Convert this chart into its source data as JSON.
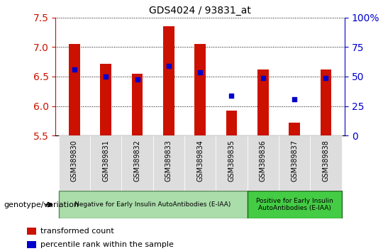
{
  "title": "GDS4024 / 93831_at",
  "samples": [
    "GSM389830",
    "GSM389831",
    "GSM389832",
    "GSM389833",
    "GSM389834",
    "GSM389835",
    "GSM389836",
    "GSM389837",
    "GSM389838"
  ],
  "red_values": [
    7.05,
    6.72,
    6.55,
    7.35,
    7.05,
    5.92,
    6.62,
    5.72,
    6.62
  ],
  "blue_values_left_scale": [
    6.62,
    6.5,
    6.45,
    6.68,
    6.57,
    6.18,
    6.47,
    6.12,
    6.47
  ],
  "ylim_left": [
    5.5,
    7.5
  ],
  "ylim_right": [
    0,
    100
  ],
  "yticks_left": [
    5.5,
    6.0,
    6.5,
    7.0,
    7.5
  ],
  "yticks_right": [
    0,
    25,
    50,
    75,
    100
  ],
  "ytick_labels_right": [
    "0",
    "25",
    "50",
    "75",
    "100%"
  ],
  "group1_label": "Negative for Early Insulin AutoAntibodies (E-IAA)",
  "group2_label": "Positive for Early Insulin\nAutoAntibodies (E-IAA)",
  "group1_sample_count": 6,
  "group2_sample_count": 3,
  "group1_color": "#aaddaa",
  "group2_color": "#44cc44",
  "bar_color": "#CC1100",
  "dot_color": "#0000CC",
  "bar_width": 0.35,
  "dot_size": 25,
  "left_tick_color": "#CC1100",
  "right_tick_color": "#0000CC",
  "bg_color": "#ffffff",
  "legend_red_label": "transformed count",
  "legend_blue_label": "percentile rank within the sample",
  "genotype_label": "genotype/variation"
}
